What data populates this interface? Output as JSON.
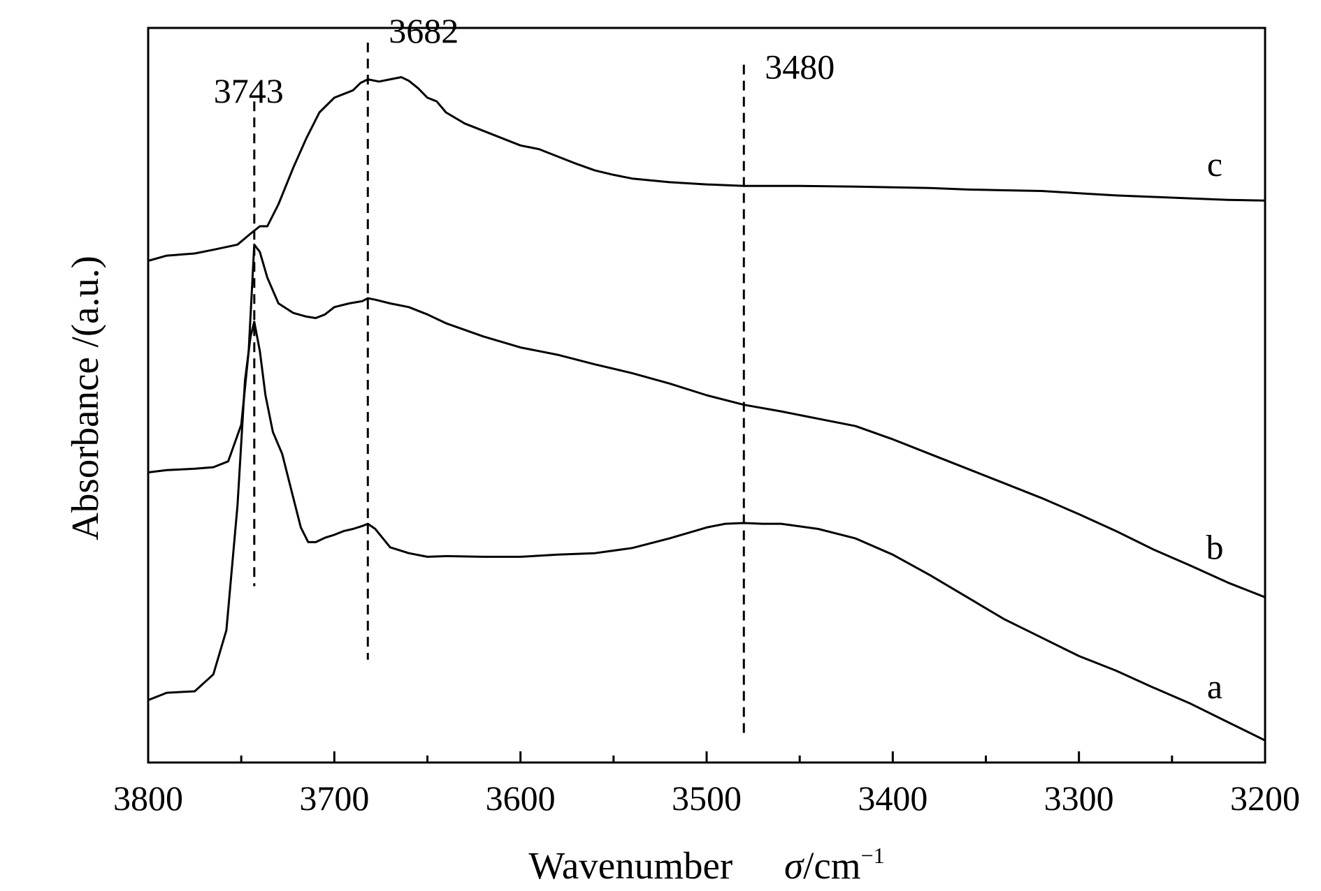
{
  "chart_data": {
    "type": "line",
    "xlabel": "Wavenumber",
    "xlabel_symbol": "σ",
    "xlabel_unit": "/cm",
    "xlabel_unit_sup": "−1",
    "ylabel": "Absorbance /(a.u.)",
    "xlim": [
      3800,
      3200
    ],
    "x_reversed": true,
    "ylim": [
      0,
      1
    ],
    "y_ticks_labeled": false,
    "x_ticks": [
      3800,
      3700,
      3600,
      3500,
      3400,
      3300,
      3200
    ],
    "x_tick_labels": [
      "3800",
      "3700",
      "3600",
      "3500",
      "3400",
      "3300",
      "3200"
    ],
    "grid": false,
    "legend": "inline labels at right end of each curve",
    "peak_markers": [
      {
        "x": 3743,
        "label": "3743",
        "y_from": 0.24,
        "y_to": 0.9
      },
      {
        "x": 3682,
        "label": "3682",
        "y_from": 0.14,
        "y_to": 0.98
      },
      {
        "x": 3480,
        "label": "3480",
        "y_from": 0.04,
        "y_to": 0.95
      }
    ],
    "series": [
      {
        "name": "a",
        "x": [
          3800,
          3790,
          3775,
          3765,
          3758,
          3752,
          3748,
          3745,
          3743,
          3740,
          3737,
          3733,
          3728,
          3722,
          3718,
          3714,
          3710,
          3705,
          3700,
          3695,
          3690,
          3685,
          3682,
          3678,
          3670,
          3660,
          3650,
          3640,
          3620,
          3600,
          3580,
          3560,
          3540,
          3520,
          3500,
          3490,
          3480,
          3470,
          3460,
          3440,
          3420,
          3400,
          3380,
          3360,
          3340,
          3320,
          3300,
          3280,
          3260,
          3240,
          3220,
          3200
        ],
        "y": [
          0.085,
          0.095,
          0.097,
          0.12,
          0.18,
          0.35,
          0.52,
          0.58,
          0.6,
          0.56,
          0.5,
          0.45,
          0.42,
          0.36,
          0.32,
          0.3,
          0.3,
          0.306,
          0.31,
          0.315,
          0.318,
          0.322,
          0.325,
          0.318,
          0.293,
          0.285,
          0.28,
          0.281,
          0.28,
          0.28,
          0.283,
          0.285,
          0.292,
          0.305,
          0.32,
          0.325,
          0.326,
          0.325,
          0.325,
          0.318,
          0.305,
          0.283,
          0.255,
          0.225,
          0.195,
          0.17,
          0.145,
          0.125,
          0.102,
          0.08,
          0.055,
          0.03
        ]
      },
      {
        "name": "b",
        "x": [
          3800,
          3790,
          3775,
          3765,
          3757,
          3750,
          3746,
          3743,
          3740,
          3736,
          3730,
          3722,
          3715,
          3710,
          3705,
          3700,
          3692,
          3685,
          3682,
          3678,
          3670,
          3660,
          3650,
          3640,
          3620,
          3600,
          3580,
          3560,
          3540,
          3520,
          3500,
          3480,
          3460,
          3440,
          3420,
          3400,
          3380,
          3360,
          3340,
          3320,
          3300,
          3280,
          3260,
          3240,
          3220,
          3200
        ],
        "y": [
          0.395,
          0.398,
          0.4,
          0.402,
          0.41,
          0.46,
          0.56,
          0.705,
          0.695,
          0.66,
          0.625,
          0.612,
          0.607,
          0.605,
          0.61,
          0.62,
          0.625,
          0.628,
          0.632,
          0.63,
          0.625,
          0.62,
          0.61,
          0.598,
          0.58,
          0.565,
          0.555,
          0.542,
          0.53,
          0.516,
          0.5,
          0.487,
          0.478,
          0.468,
          0.458,
          0.44,
          0.42,
          0.4,
          0.38,
          0.36,
          0.338,
          0.315,
          0.29,
          0.268,
          0.245,
          0.225
        ]
      },
      {
        "name": "c",
        "x": [
          3800,
          3790,
          3775,
          3765,
          3752,
          3745,
          3740,
          3736,
          3730,
          3722,
          3715,
          3708,
          3700,
          3695,
          3690,
          3686,
          3682,
          3676,
          3670,
          3664,
          3660,
          3655,
          3650,
          3645,
          3640,
          3630,
          3620,
          3610,
          3600,
          3590,
          3580,
          3570,
          3560,
          3550,
          3540,
          3520,
          3500,
          3480,
          3450,
          3420,
          3400,
          3380,
          3360,
          3340,
          3320,
          3300,
          3280,
          3260,
          3240,
          3220,
          3200
        ],
        "y": [
          0.683,
          0.69,
          0.693,
          0.698,
          0.705,
          0.72,
          0.73,
          0.73,
          0.76,
          0.81,
          0.85,
          0.885,
          0.905,
          0.91,
          0.915,
          0.925,
          0.93,
          0.927,
          0.93,
          0.933,
          0.928,
          0.918,
          0.905,
          0.9,
          0.885,
          0.87,
          0.86,
          0.85,
          0.84,
          0.835,
          0.825,
          0.815,
          0.806,
          0.8,
          0.795,
          0.79,
          0.787,
          0.785,
          0.785,
          0.784,
          0.783,
          0.782,
          0.78,
          0.779,
          0.778,
          0.775,
          0.772,
          0.77,
          0.768,
          0.766,
          0.765
        ]
      }
    ]
  }
}
